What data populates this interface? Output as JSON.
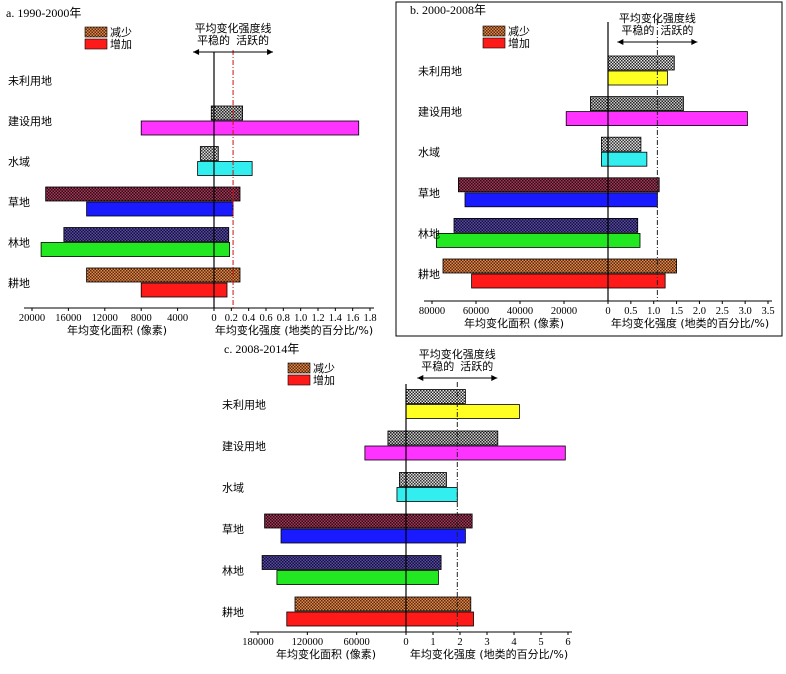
{
  "chart_data": [
    {
      "type": "bar",
      "title": "a. 1990-2000年",
      "categories": [
        "耕地",
        "林地",
        "草地",
        "水域",
        "建设用地",
        "未利用地"
      ],
      "legend": [
        "减少",
        "增加"
      ],
      "annotation": {
        "line_label": "平均变化强度线",
        "left_label": "平稳的",
        "right_label": "活跃的"
      },
      "left_axis": {
        "label": "年均变化面积 (像素)",
        "ticks": [
          "20000",
          "16000",
          "12000",
          "8000",
          "4000"
        ],
        "max": 20000,
        "decrease": [
          14000,
          16500,
          18500,
          1500,
          300,
          0
        ],
        "increase": [
          8000,
          19000,
          14000,
          1800,
          8000,
          0
        ]
      },
      "right_axis": {
        "label": "年均变化强度 (地类的百分比/%)",
        "ticks": [
          "0",
          "0.2",
          "0.4",
          "0.6",
          "0.8",
          "1.0",
          "1.2",
          "1.4",
          "1.6",
          "1.8"
        ],
        "max": 1.8,
        "average_line": 0.22,
        "decrease": [
          0.3,
          0.17,
          0.3,
          0.05,
          0.33,
          0
        ],
        "increase": [
          0.15,
          0.18,
          0.22,
          0.44,
          1.67,
          0
        ]
      }
    },
    {
      "type": "bar",
      "title": "b. 2000-2008年",
      "categories": [
        "耕地",
        "林地",
        "草地",
        "水域",
        "建设用地",
        "未利用地"
      ],
      "legend": [
        "减少",
        "增加"
      ],
      "annotation": {
        "line_label": "平均变化强度线",
        "left_label": "平稳的",
        "right_label": "活跃的"
      },
      "left_axis": {
        "label": "年均变化面积 (像素)",
        "ticks": [
          "80000",
          "60000",
          "40000",
          "20000"
        ],
        "max": 80000,
        "decrease": [
          75000,
          70000,
          68000,
          3000,
          8000,
          0
        ],
        "increase": [
          62000,
          78000,
          65000,
          3000,
          19000,
          0
        ]
      },
      "right_axis": {
        "label": "年均变化强度 (地类的百分比/%)",
        "ticks": [
          "0",
          "0.5",
          "1.0",
          "1.5",
          "2.0",
          "2.5",
          "3.0",
          "3.5"
        ],
        "max": 3.5,
        "average_line": 1.08,
        "decrease": [
          1.5,
          0.65,
          1.12,
          0.72,
          1.65,
          1.45
        ],
        "increase": [
          1.25,
          0.7,
          1.08,
          0.85,
          3.05,
          1.3
        ]
      }
    },
    {
      "type": "bar",
      "title": "c. 2008-2014年",
      "categories": [
        "耕地",
        "林地",
        "草地",
        "水域",
        "建设用地",
        "未利用地"
      ],
      "legend": [
        "减少",
        "增加"
      ],
      "annotation": {
        "line_label": "平均变化强度线",
        "left_label": "平稳的",
        "right_label": "活跃的"
      },
      "left_axis": {
        "label": "年均变化面积 (像素)",
        "ticks": [
          "180000",
          "120000",
          "60000"
        ],
        "max": 180000,
        "decrease": [
          135000,
          175000,
          172000,
          8000,
          22000,
          0
        ],
        "increase": [
          145000,
          157000,
          152000,
          11000,
          50000,
          0
        ]
      },
      "right_axis": {
        "label": "年均变化强度 (地类的百分比/%)",
        "ticks": [
          "0",
          "1",
          "2",
          "3",
          "4",
          "5",
          "6"
        ],
        "max": 6,
        "average_line": 1.9,
        "decrease": [
          2.4,
          1.3,
          2.45,
          1.5,
          3.4,
          2.2
        ],
        "increase": [
          2.5,
          1.2,
          2.2,
          1.9,
          5.9,
          4.2
        ]
      }
    }
  ]
}
